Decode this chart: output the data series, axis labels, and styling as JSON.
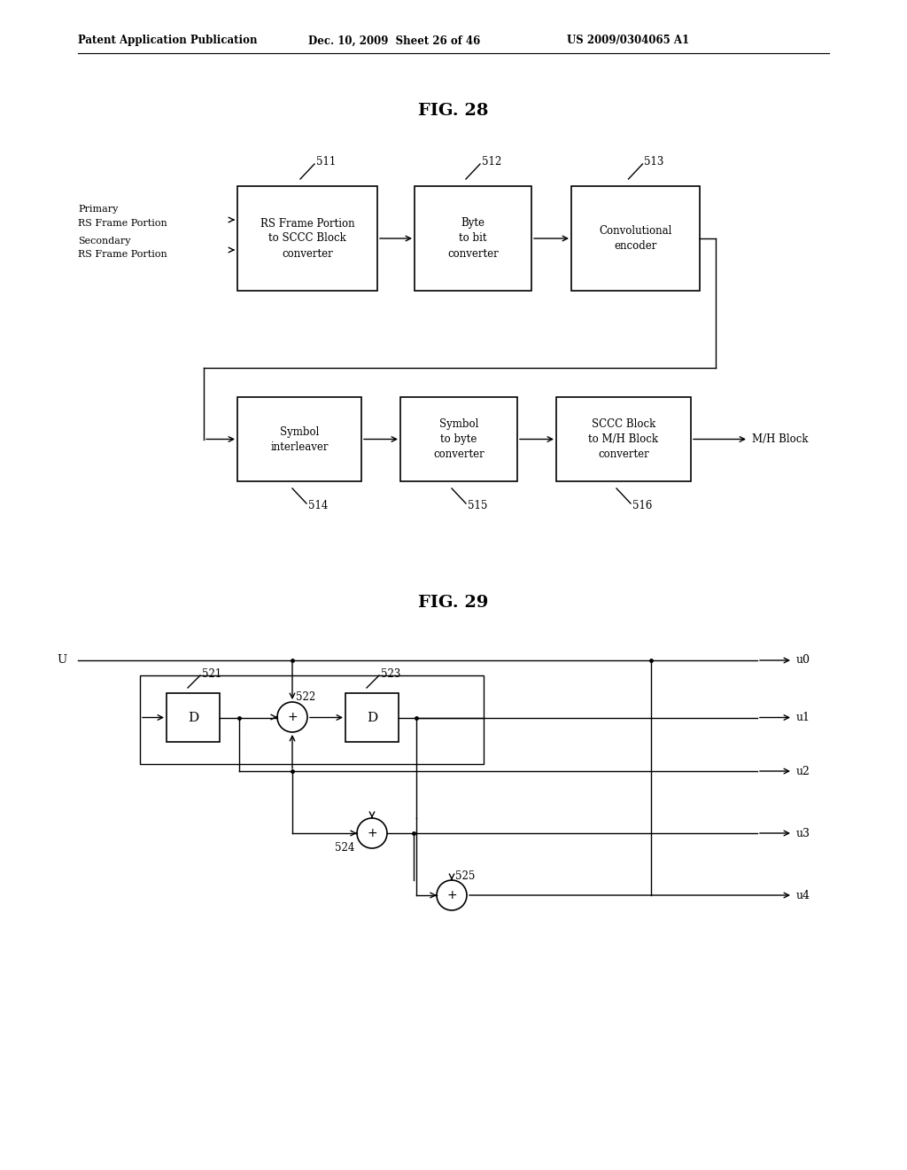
{
  "header_left": "Patent Application Publication",
  "header_mid": "Dec. 10, 2009  Sheet 26 of 46",
  "header_right": "US 2009/0304065 A1",
  "fig28_title": "FIG. 28",
  "fig29_title": "FIG. 29",
  "background": "#ffffff",
  "line_color": "#000000",
  "text_color": "#000000"
}
